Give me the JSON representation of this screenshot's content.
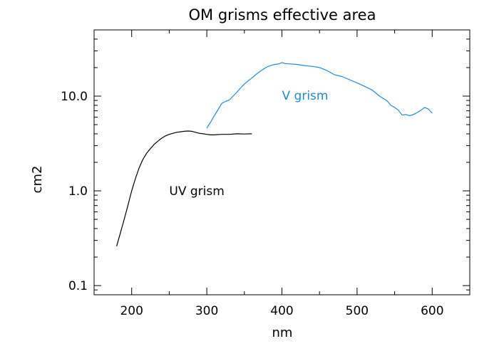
{
  "chart_data": {
    "type": "line",
    "title": "OM grisms effective area",
    "xlabel": "nm",
    "ylabel": "cm2",
    "x_scale": "linear",
    "y_scale": "log",
    "xlim": [
      150,
      650
    ],
    "ylim": [
      0.08,
      50
    ],
    "grid": false,
    "legend": "none",
    "x_ticks": [
      200,
      300,
      400,
      500,
      600
    ],
    "x_tick_labels": [
      "200",
      "300",
      "400",
      "500",
      "600"
    ],
    "y_ticks": [
      0.1,
      1.0,
      10.0
    ],
    "y_tick_labels": [
      "0.1",
      "1.0",
      "10.0"
    ],
    "series": [
      {
        "name": "UV grism",
        "color": "#000000",
        "x": [
          180,
          185,
          190,
          195,
          200,
          205,
          210,
          215,
          220,
          225,
          230,
          235,
          240,
          245,
          250,
          255,
          260,
          265,
          270,
          275,
          280,
          285,
          290,
          295,
          300,
          305,
          310,
          320,
          330,
          340,
          350,
          360
        ],
        "y": [
          0.26,
          0.36,
          0.5,
          0.7,
          1.0,
          1.35,
          1.75,
          2.15,
          2.5,
          2.8,
          3.1,
          3.35,
          3.6,
          3.8,
          3.95,
          4.05,
          4.15,
          4.2,
          4.25,
          4.28,
          4.25,
          4.15,
          4.05,
          4.0,
          3.95,
          3.9,
          3.9,
          3.95,
          3.95,
          4.0,
          3.98,
          4.0
        ]
      },
      {
        "name": "V grism",
        "color": "#1c8ae0",
        "x": [
          300,
          305,
          310,
          315,
          320,
          325,
          330,
          335,
          340,
          345,
          350,
          355,
          360,
          365,
          370,
          375,
          380,
          385,
          390,
          395,
          400,
          405,
          410,
          420,
          430,
          440,
          450,
          460,
          470,
          480,
          490,
          500,
          510,
          520,
          530,
          540,
          545,
          550,
          555,
          560,
          565,
          570,
          575,
          580,
          585,
          590,
          595,
          600
        ],
        "y": [
          4.6,
          5.3,
          6.2,
          7.2,
          8.4,
          8.8,
          9.1,
          10.0,
          11.0,
          12.2,
          13.4,
          14.5,
          15.5,
          16.8,
          18.0,
          19.2,
          20.3,
          21.0,
          21.6,
          21.8,
          22.6,
          22.0,
          21.9,
          21.6,
          21.0,
          20.6,
          20.0,
          18.6,
          16.8,
          16.1,
          14.9,
          13.8,
          12.7,
          11.6,
          10.0,
          8.9,
          8.0,
          7.6,
          7.1,
          6.3,
          6.4,
          6.2,
          6.4,
          6.7,
          7.1,
          7.6,
          7.3,
          6.6
        ]
      }
    ],
    "annotations": [
      {
        "text": "V grism",
        "x": 400,
        "y": 10.2,
        "color": "#1c8ae0"
      },
      {
        "text": "UV grism",
        "x": 250,
        "y": 1.0,
        "color": "#000000"
      }
    ]
  }
}
